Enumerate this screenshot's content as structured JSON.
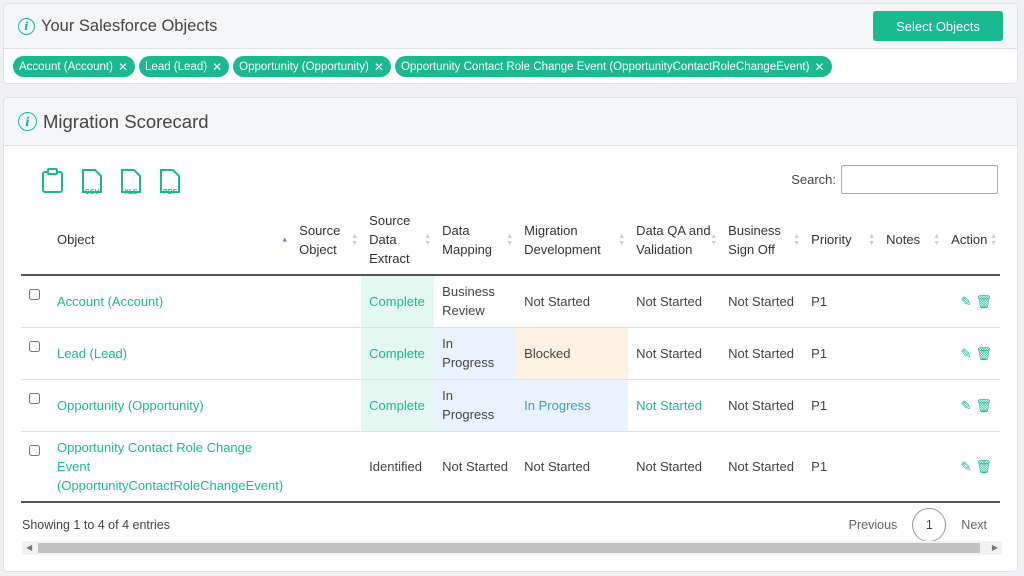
{
  "objects_panel": {
    "title": "Your Salesforce Objects",
    "select_button": "Select Objects",
    "tags": [
      "Account (Account)",
      "Lead (Lead)",
      "Opportunity (Opportunity)",
      "Opportunity Contact Role Change Event (OpportunityContactRoleChangeEvent)"
    ],
    "tag_remove": "✕"
  },
  "scorecard": {
    "title": "Migration Scorecard",
    "export": {
      "csv": "CSV",
      "xls": "XLS",
      "pdf": "PDF"
    },
    "search_label": "Search:",
    "search_value": "",
    "columns": [
      "Object",
      "Source Object",
      "Source Data Extract",
      "Data Mapping",
      "Migration Development",
      "Data QA and Validation",
      "Business Sign Off",
      "Priority",
      "Notes",
      "Action"
    ],
    "rows": [
      [
        "Account (Account)",
        "",
        "Complete",
        "Business Review",
        "Not Started",
        "Not Started",
        "Not Started",
        "P1",
        ""
      ],
      [
        "Lead (Lead)",
        "",
        "Complete",
        "In Progress",
        "Blocked",
        "Not Started",
        "Not Started",
        "P1",
        ""
      ],
      [
        "Opportunity (Opportunity)",
        "",
        "Complete",
        "In Progress",
        "In Progress",
        "Not Started",
        "Not Started",
        "P1",
        ""
      ],
      [
        "Opportunity Contact Role Change Event (OpportunityContactRoleChangeEvent)",
        "",
        "Identified",
        "Not Started",
        "Not Started",
        "Not Started",
        "Not Started",
        "P1",
        ""
      ]
    ],
    "info": "Showing 1 to 4 of 4 entries",
    "pager": {
      "previous": "Previous",
      "page": "1",
      "next": "Next"
    }
  },
  "colors": {
    "accent": "#1bb98f",
    "blue_status": "#3c9ad6",
    "blocked_bg": "#fdf2e1"
  }
}
